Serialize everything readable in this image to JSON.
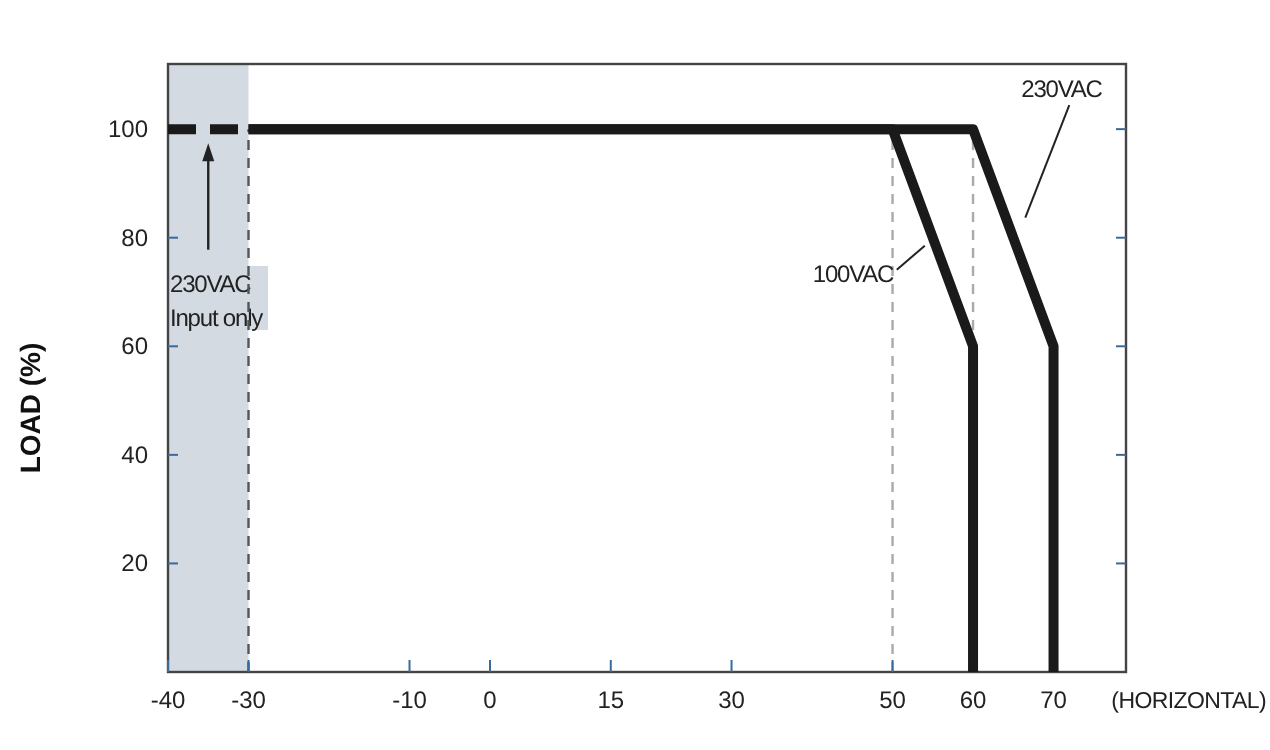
{
  "chart_data": {
    "type": "line",
    "ylabel": "LOAD (%)",
    "xlabel": "(HORIZONTAL)",
    "xlim": [
      -40,
      79
    ],
    "xticks": [
      -40,
      -30,
      -10,
      0,
      15,
      30,
      50,
      60,
      70
    ],
    "ylim": [
      0,
      112
    ],
    "yticks": [
      20,
      40,
      60,
      80,
      100
    ],
    "series": [
      {
        "x": [
          -40,
          -30
        ],
        "values": [
          100,
          100
        ],
        "color": "#1a1a1a",
        "line_style": "dashed"
      },
      {
        "name": "230VAC",
        "x": [
          -30,
          60,
          70,
          70
        ],
        "values": [
          100,
          100,
          60,
          0
        ],
        "color": "#1a1a1a",
        "line_style": "solid"
      },
      {
        "name": "100VAC",
        "x": [
          -30,
          50,
          60,
          60
        ],
        "values": [
          100,
          100,
          60,
          0
        ],
        "color": "#1a1a1a",
        "line_style": "solid"
      }
    ],
    "bands": [
      {
        "axis": "x",
        "from": -40,
        "to": -30,
        "label": "230VAC Input only",
        "color": "#d3dae2"
      }
    ],
    "ref_lines": [
      {
        "axis": "x",
        "value": -30,
        "line_style": "dashed",
        "color": "#555555"
      },
      {
        "axis": "x",
        "value": 50,
        "line_style": "dashed",
        "color": "#aaaaaa"
      },
      {
        "axis": "x",
        "value": 60,
        "line_style": "dashed",
        "color": "#aaaaaa"
      }
    ],
    "grid": false,
    "marker": "none"
  }
}
